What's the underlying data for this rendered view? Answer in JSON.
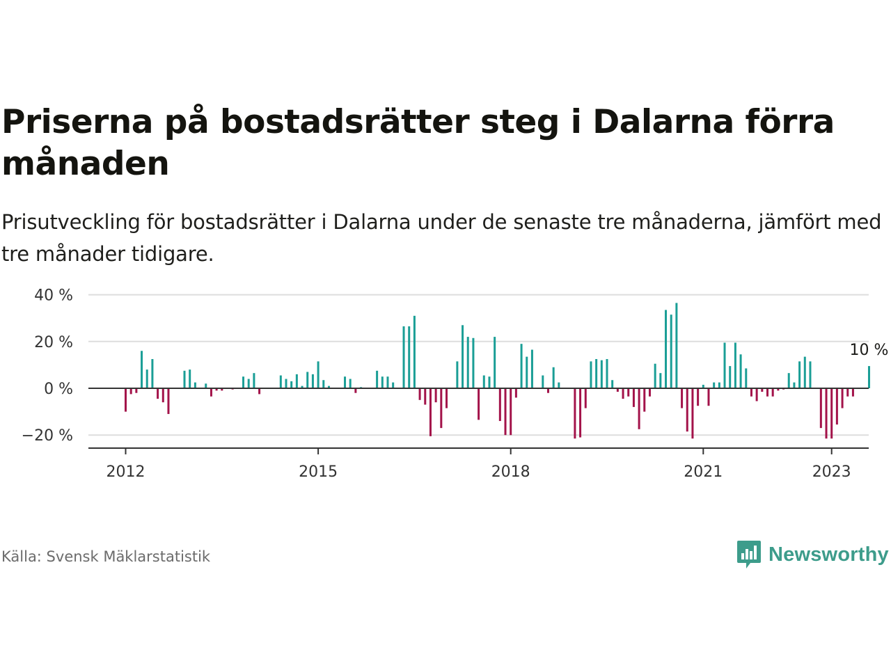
{
  "title": "Priserna på bostadsrätter steg i Dalarna förra månaden",
  "subtitle": "Prisutveckling för bostadsrätter i Dalarna under de senaste tre månaderna, jämfört med tre månader tidigare.",
  "source": "Källa: Svensk Mäklarstatistik",
  "brand": {
    "name": "Newsworthy",
    "icon": "newsworthy-logo-icon",
    "color": "#3d9c8b"
  },
  "colors": {
    "positive": "#1a9e96",
    "negative": "#a3134a",
    "zero_line": "#333333",
    "grid": "#dddddd"
  },
  "chart_data": {
    "type": "bar",
    "start": "2012-01",
    "values": [
      -10,
      -2.5,
      -2,
      16,
      8,
      12.5,
      -4.5,
      -6,
      -11,
      0,
      0,
      7.5,
      8,
      2.5,
      0,
      2,
      -3.5,
      -1,
      -1,
      0,
      -0.5,
      0,
      5,
      4,
      6.5,
      -2.5,
      0,
      0,
      0,
      5.5,
      4,
      3,
      6,
      1,
      7,
      6,
      11.5,
      3.5,
      1,
      0,
      0,
      5,
      4,
      -2,
      0.5,
      0,
      0,
      7.5,
      5,
      5,
      2.5,
      0,
      26.5,
      26.5,
      31,
      -5,
      -7,
      -20.5,
      -6,
      -17,
      -8.5,
      0,
      11.5,
      27,
      22,
      21.5,
      -13.5,
      5.5,
      5,
      22,
      -14,
      -20,
      -20,
      -4,
      19,
      13.5,
      16.5,
      0,
      5.5,
      -2,
      9,
      2.5,
      0,
      0,
      -21.5,
      -21,
      -8.5,
      11.5,
      12.5,
      12,
      12.5,
      3.5,
      -1.5,
      -4.5,
      -3.5,
      -8,
      -17.5,
      -10,
      -3.5,
      10.5,
      6.5,
      33.5,
      31.5,
      36.5,
      -8.5,
      -18.5,
      -21.5,
      -7.5,
      1.5,
      -7.5,
      2.5,
      2.5,
      19.5,
      9.5,
      19.5,
      14.5,
      8.5,
      -3.5,
      -5.5,
      -1.5,
      -3.5,
      -3.5,
      -1,
      -0.5,
      6.5,
      2.5,
      11.5,
      13.5,
      11.5,
      0,
      -17,
      -21.5,
      -21.5,
      -15.5,
      -8.5,
      -3.5,
      -3.5,
      0,
      0,
      9.5
    ],
    "x_ticks": [
      "2012",
      "2015",
      "2018",
      "2021",
      "2023"
    ],
    "y_ticks": [
      "40 %",
      "20 %",
      "0 %",
      "−20 %"
    ],
    "y_tick_values": [
      40,
      20,
      0,
      -20
    ],
    "ylim": [
      -25,
      40
    ],
    "annotation": {
      "label": "10 %",
      "value": 9.5
    },
    "grid": true
  }
}
